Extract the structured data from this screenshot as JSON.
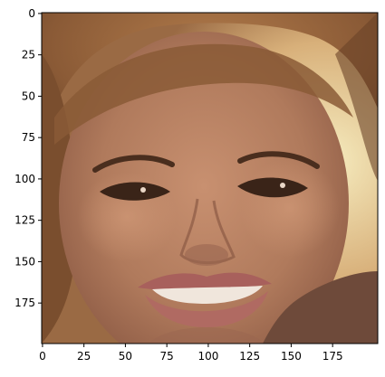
{
  "image": {
    "subject": "portrait",
    "palette": {
      "hair_dark": "#5a3a22",
      "hair_mid": "#8a5a36",
      "hair_light": "#b07a4a",
      "skin": "#b07a5c",
      "skin_light": "#c89070",
      "skin_shadow": "#8c5a44",
      "lips": "#a8605c",
      "teeth": "#f0e6dc",
      "eye_dark": "#2a1a14",
      "background_light": "#f2e6b0",
      "clothing": "#6e4a3a"
    }
  },
  "axes": {
    "x_ticks": [
      "0",
      "25",
      "50",
      "75",
      "100",
      "125",
      "150",
      "175"
    ],
    "y_ticks": [
      "0",
      "25",
      "50",
      "75",
      "100",
      "125",
      "150",
      "175"
    ]
  }
}
